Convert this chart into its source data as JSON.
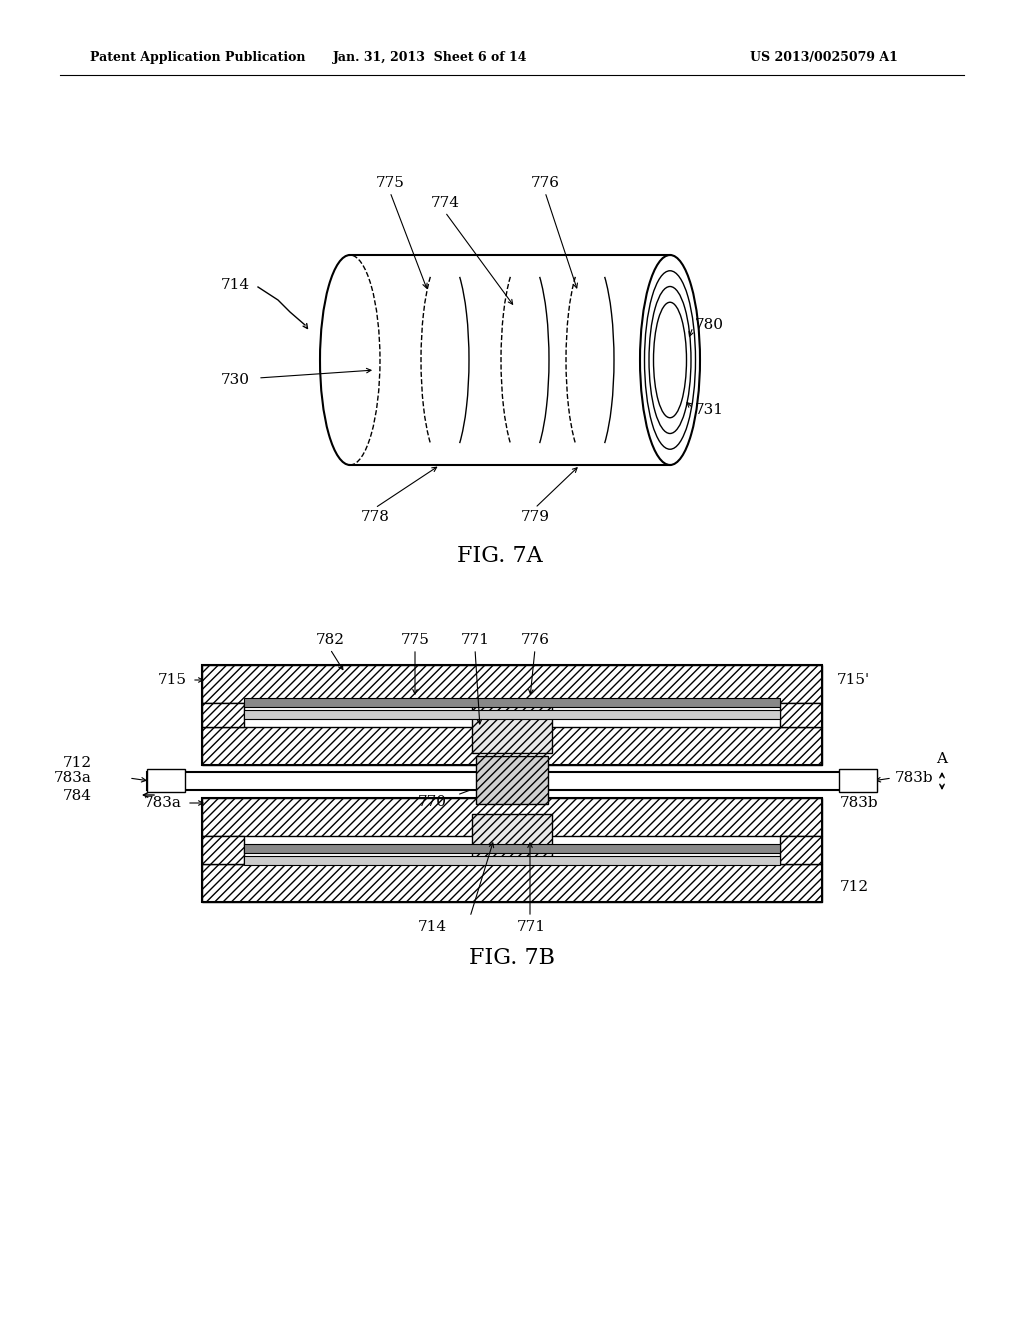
{
  "title_line1": "Patent Application Publication",
  "title_line2": "Jan. 31, 2013  Sheet 6 of 14",
  "title_line3": "US 2013/0025079 A1",
  "fig7a_label": "FIG. 7A",
  "fig7b_label": "FIG. 7B",
  "bg_color": "#ffffff",
  "line_color": "#000000"
}
